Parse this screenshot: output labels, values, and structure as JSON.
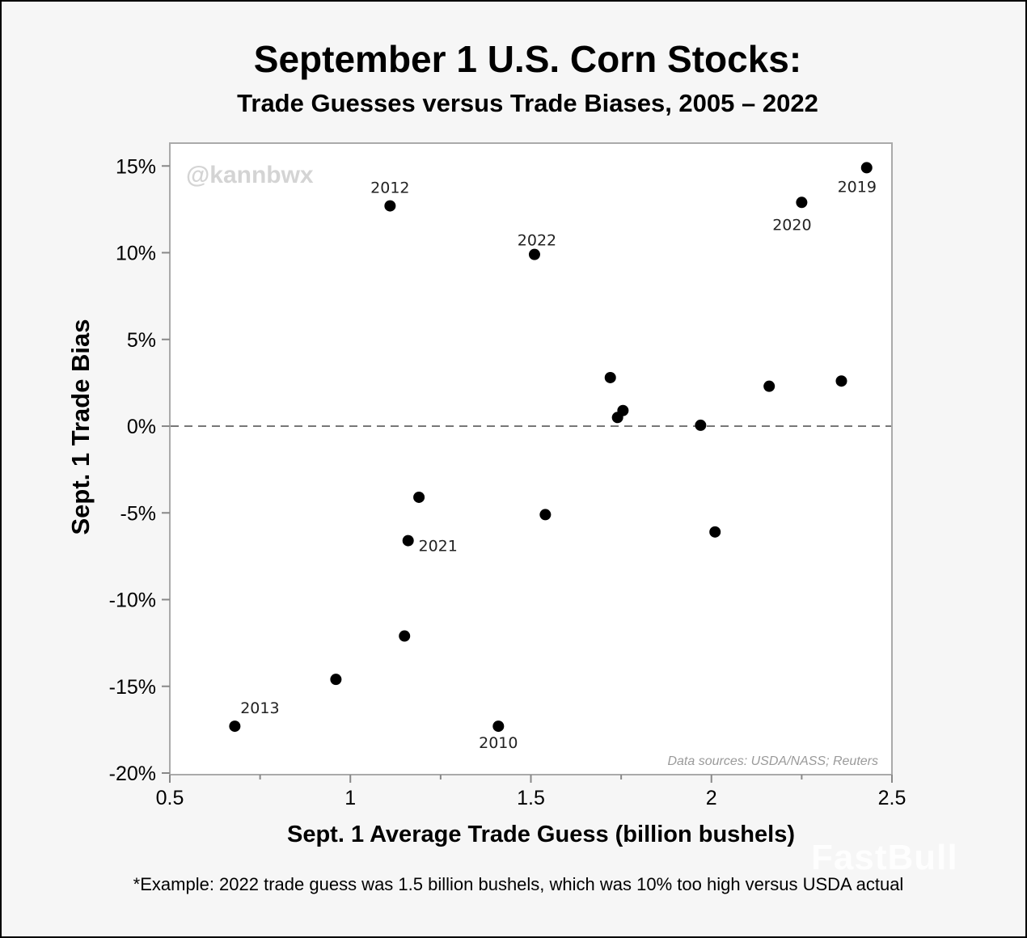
{
  "chart_data": {
    "type": "scatter",
    "title": "September 1 U.S. Corn Stocks:",
    "subtitle": "Trade Guesses versus Trade Biases, 2005 – 2022",
    "xlabel": "Sept. 1 Average Trade Guess (billion bushels)",
    "ylabel": "Sept. 1 Trade Bias",
    "xlim": [
      0.5,
      2.5
    ],
    "ylim": [
      -20,
      16.5
    ],
    "x_ticks": [
      0.5,
      1,
      1.5,
      2,
      2.5
    ],
    "x_tick_labels": [
      "0.5",
      "1",
      "1.5",
      "2",
      "2.5"
    ],
    "y_ticks": [
      15,
      10,
      5,
      0,
      -5,
      -10,
      -15,
      -20
    ],
    "y_tick_labels": [
      "15%",
      "10%",
      "5%",
      "0%",
      "-5%",
      "-10%",
      "-15%",
      "-20%"
    ],
    "reference_line": {
      "y": 0,
      "style": "dashed"
    },
    "grid": false,
    "marker_color": "#000000",
    "points": [
      {
        "x": 1.11,
        "y": 12.7,
        "label": "2012"
      },
      {
        "x": 1.51,
        "y": 9.9,
        "label": "2022"
      },
      {
        "x": 2.43,
        "y": 14.9,
        "label": "2019"
      },
      {
        "x": 2.25,
        "y": 12.9,
        "label": "2020"
      },
      {
        "x": 1.72,
        "y": 2.8,
        "label": ""
      },
      {
        "x": 1.755,
        "y": 0.9,
        "label": ""
      },
      {
        "x": 1.74,
        "y": 0.5,
        "label": ""
      },
      {
        "x": 1.97,
        "y": 0.05,
        "label": ""
      },
      {
        "x": 2.16,
        "y": 2.3,
        "label": ""
      },
      {
        "x": 2.36,
        "y": 2.6,
        "label": ""
      },
      {
        "x": 1.19,
        "y": -4.1,
        "label": ""
      },
      {
        "x": 1.54,
        "y": -5.1,
        "label": ""
      },
      {
        "x": 1.16,
        "y": -6.6,
        "label": "2021"
      },
      {
        "x": 2.01,
        "y": -6.1,
        "label": ""
      },
      {
        "x": 1.15,
        "y": -12.1,
        "label": ""
      },
      {
        "x": 0.96,
        "y": -14.6,
        "label": ""
      },
      {
        "x": 0.68,
        "y": -17.3,
        "label": "2013"
      },
      {
        "x": 1.41,
        "y": -17.3,
        "label": "2010"
      }
    ],
    "annotations": {
      "handle": "@kannbwx",
      "sources": "Data sources: USDA/NASS; Reuters"
    }
  },
  "footnote": "*Example: 2022 trade guess was 1.5 billion bushels, which was 10% too high versus USDA actual",
  "watermark": "FastBull"
}
